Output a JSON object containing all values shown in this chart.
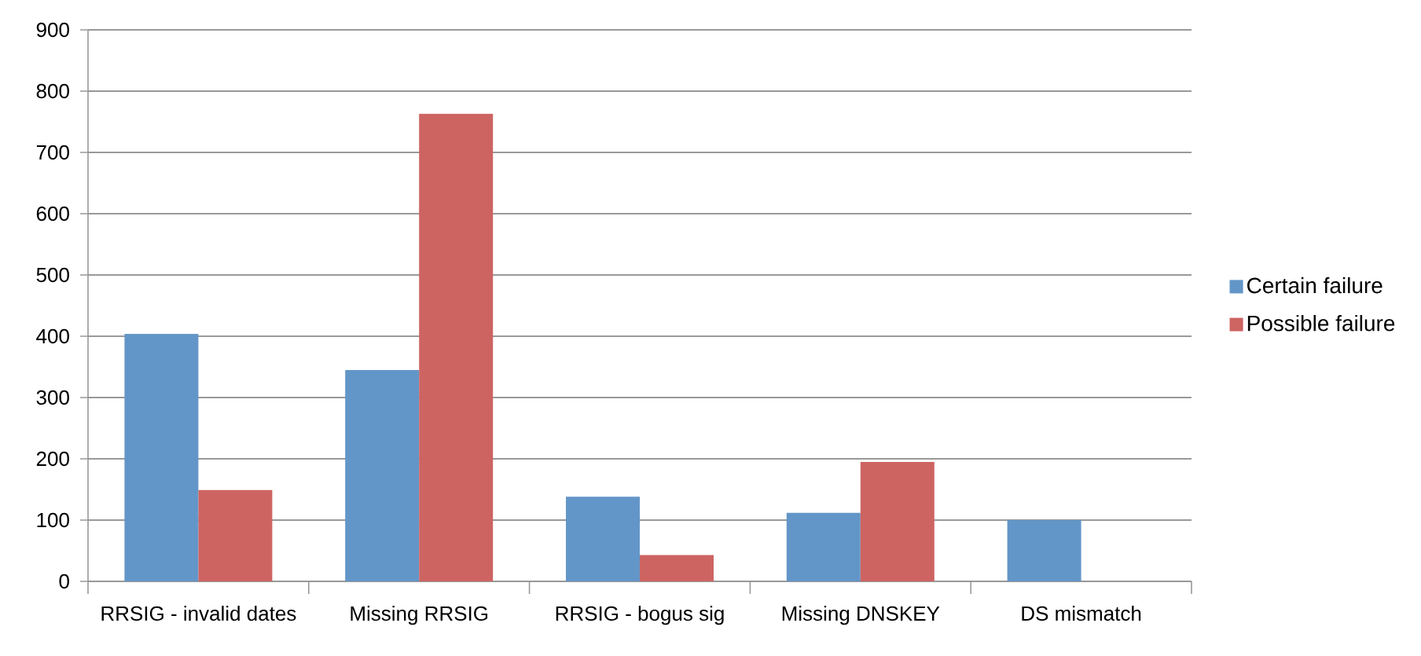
{
  "chart_data": {
    "type": "bar",
    "categories": [
      "RRSIG - invalid dates",
      "Missing RRSIG",
      "RRSIG - bogus sig",
      "Missing DNSKEY",
      "DS mismatch"
    ],
    "series": [
      {
        "name": "Certain failure",
        "color": "#6396c8",
        "values": [
          404,
          345,
          138,
          112,
          100
        ]
      },
      {
        "name": "Possible failure",
        "color": "#cd6462",
        "values": [
          149,
          763,
          43,
          195,
          0
        ]
      }
    ],
    "ylim": [
      0,
      900
    ],
    "yticks": [
      0,
      100,
      200,
      300,
      400,
      500,
      600,
      700,
      800,
      900
    ],
    "grid": "y",
    "legend": "right"
  }
}
